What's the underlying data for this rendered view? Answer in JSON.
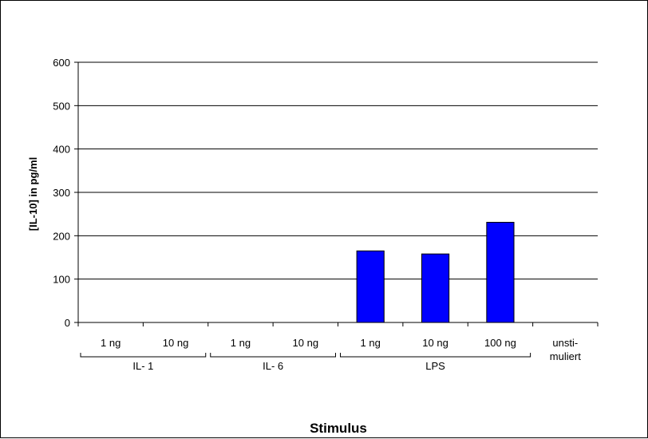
{
  "chart_data": {
    "type": "bar",
    "categories": [
      "1 ng",
      "10 ng",
      "1 ng",
      "10 ng",
      "1 ng",
      "10 ng",
      "100 ng",
      "unsti-|muliert"
    ],
    "groups": [
      {
        "label": "IL- 1",
        "from": 0,
        "to": 1
      },
      {
        "label": "IL- 6",
        "from": 2,
        "to": 3
      },
      {
        "label": "LPS",
        "from": 4,
        "to": 6
      }
    ],
    "values": [
      0,
      0,
      0,
      0,
      165,
      158,
      231,
      0
    ],
    "ylim": [
      0,
      600
    ],
    "yticks": [
      "0",
      "100",
      "200",
      "300",
      "400",
      "500",
      "600"
    ],
    "ylabel": "[IL-10] in pg/ml",
    "xlabel": "Stimulus",
    "bar_color": "#0000ff",
    "grid": true,
    "legend": false
  }
}
